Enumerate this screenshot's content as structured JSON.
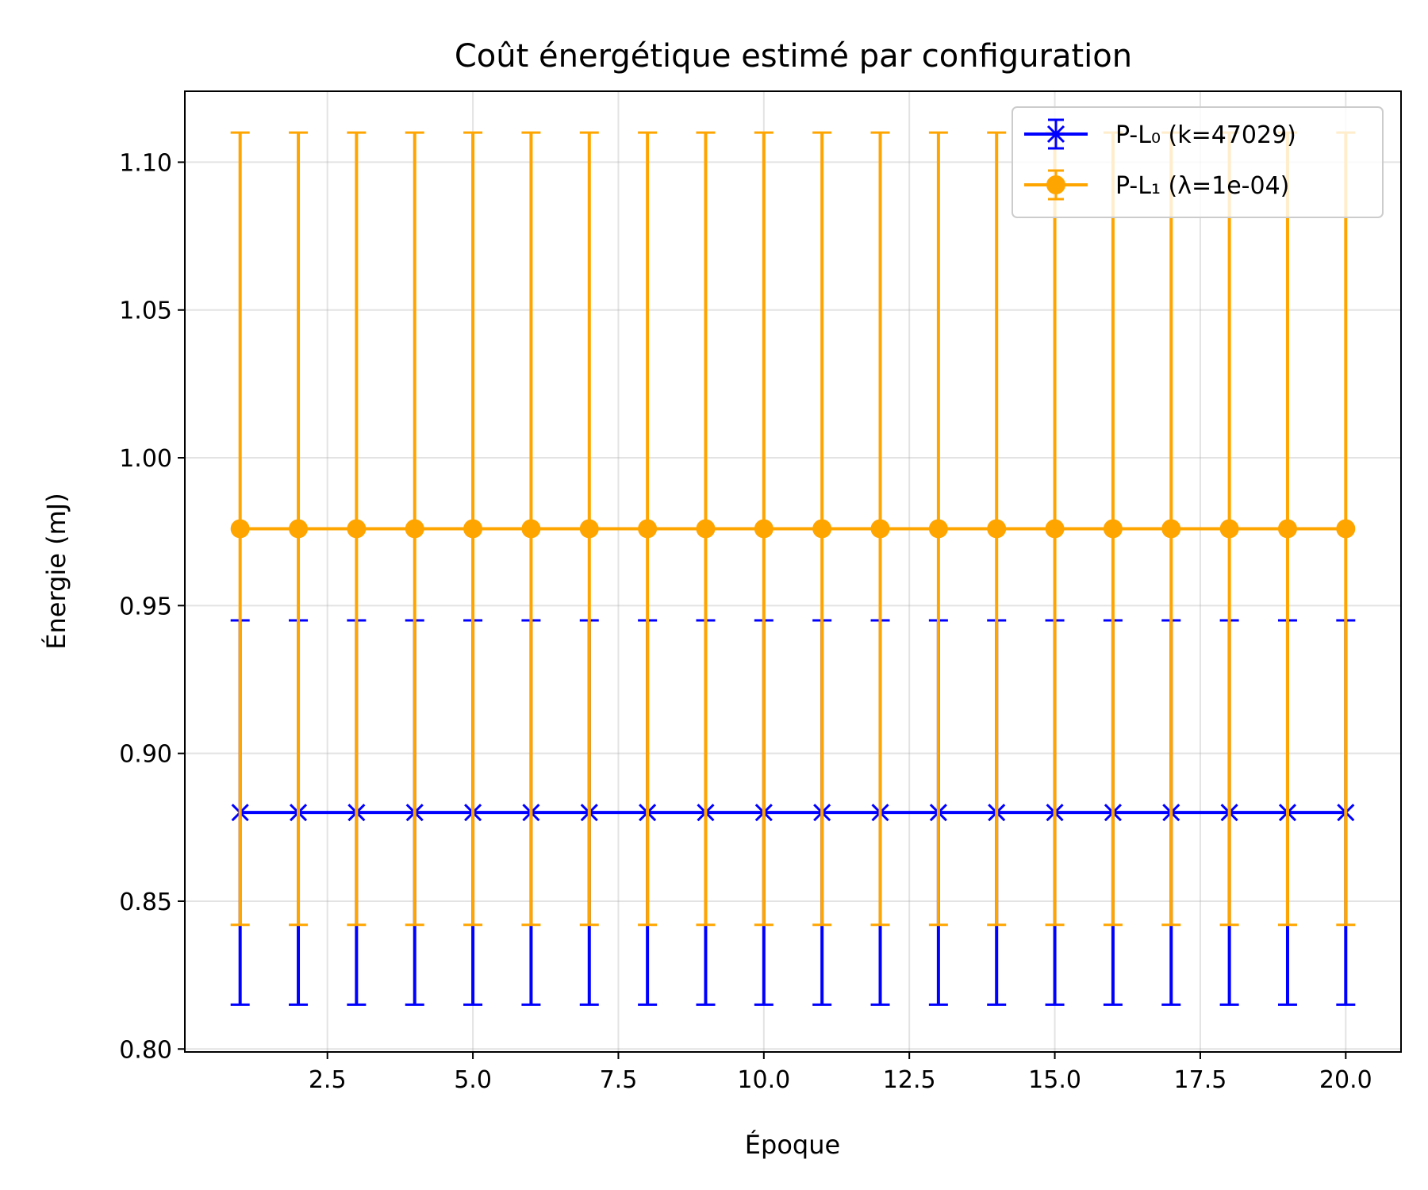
{
  "chart_data": {
    "type": "line",
    "title": "Coût énergétique estimé par configuration",
    "xlabel": "Époque",
    "ylabel": "Énergie (mJ)",
    "xlim": [
      0.05,
      20.95
    ],
    "ylim": [
      0.799,
      1.124
    ],
    "x_ticks": [
      2.5,
      5.0,
      7.5,
      10.0,
      12.5,
      15.0,
      17.5,
      20.0
    ],
    "x_tick_labels": [
      "2.5",
      "5.0",
      "7.5",
      "10.0",
      "12.5",
      "15.0",
      "17.5",
      "20.0"
    ],
    "y_ticks": [
      0.8,
      0.85,
      0.9,
      0.95,
      1.0,
      1.05,
      1.1
    ],
    "y_tick_labels": [
      "0.80",
      "0.85",
      "0.90",
      "0.95",
      "1.00",
      "1.05",
      "1.10"
    ],
    "grid": true,
    "legend_position": "top-right",
    "x": [
      1,
      2,
      3,
      4,
      5,
      6,
      7,
      8,
      9,
      10,
      11,
      12,
      13,
      14,
      15,
      16,
      17,
      18,
      19,
      20
    ],
    "series": [
      {
        "name": "P-L₀ (k=47029)",
        "color": "#0000ff",
        "marker": "x",
        "values": [
          0.88,
          0.88,
          0.88,
          0.88,
          0.88,
          0.88,
          0.88,
          0.88,
          0.88,
          0.88,
          0.88,
          0.88,
          0.88,
          0.88,
          0.88,
          0.88,
          0.88,
          0.88,
          0.88,
          0.88
        ],
        "error_low": [
          0.815,
          0.815,
          0.815,
          0.815,
          0.815,
          0.815,
          0.815,
          0.815,
          0.815,
          0.815,
          0.815,
          0.815,
          0.815,
          0.815,
          0.815,
          0.815,
          0.815,
          0.815,
          0.815,
          0.815
        ],
        "error_high": [
          0.945,
          0.945,
          0.945,
          0.945,
          0.945,
          0.945,
          0.945,
          0.945,
          0.945,
          0.945,
          0.945,
          0.945,
          0.945,
          0.945,
          0.945,
          0.945,
          0.945,
          0.945,
          0.945,
          0.945
        ]
      },
      {
        "name": "P-L₁ (λ=1e-04)",
        "color": "#ffa500",
        "marker": "circle",
        "values": [
          0.976,
          0.976,
          0.976,
          0.976,
          0.976,
          0.976,
          0.976,
          0.976,
          0.976,
          0.976,
          0.976,
          0.976,
          0.976,
          0.976,
          0.976,
          0.976,
          0.976,
          0.976,
          0.976,
          0.976
        ],
        "error_low": [
          0.842,
          0.842,
          0.842,
          0.842,
          0.842,
          0.842,
          0.842,
          0.842,
          0.842,
          0.842,
          0.842,
          0.842,
          0.842,
          0.842,
          0.842,
          0.842,
          0.842,
          0.842,
          0.842,
          0.842
        ],
        "error_high": [
          1.11,
          1.11,
          1.11,
          1.11,
          1.11,
          1.11,
          1.11,
          1.11,
          1.11,
          1.11,
          1.11,
          1.11,
          1.11,
          1.11,
          1.11,
          1.11,
          1.11,
          1.11,
          1.11,
          1.11
        ]
      }
    ]
  }
}
